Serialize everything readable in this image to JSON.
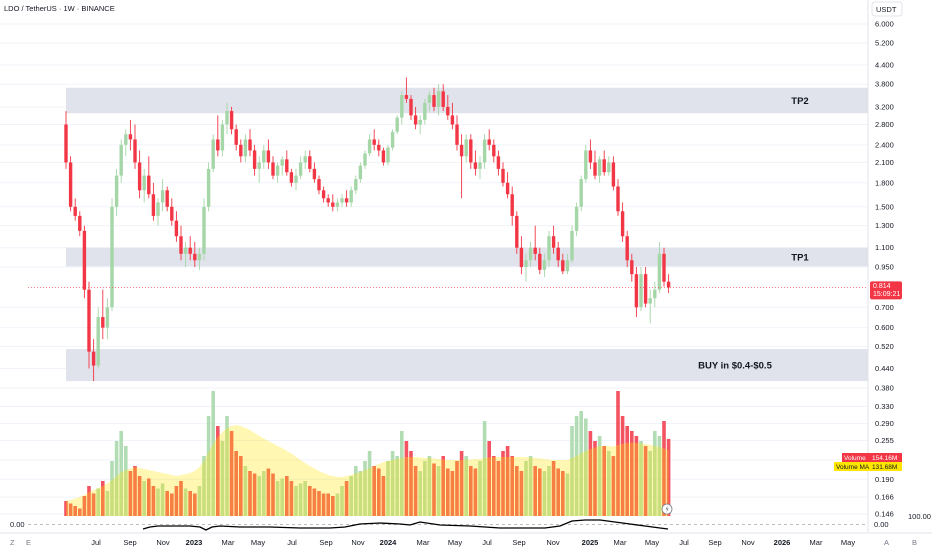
{
  "header": {
    "symbol_title": "LDO / TetherUS · 1W · BINANCE",
    "currency": "USDT"
  },
  "price_axis": {
    "labels": [
      "6.000",
      "5.200",
      "4.400",
      "3.800",
      "3.200",
      "2.800",
      "2.400",
      "2.100",
      "1.800",
      "1.500",
      "1.300",
      "1.100",
      "0.950",
      "0.814",
      "0.700",
      "0.600",
      "0.520",
      "0.440",
      "0.380",
      "0.330",
      "0.290",
      "0.255",
      "0.220",
      "0.190",
      "0.166",
      "0.146"
    ],
    "values": [
      6.0,
      5.2,
      4.4,
      3.8,
      3.2,
      2.8,
      2.4,
      2.1,
      1.8,
      1.5,
      1.3,
      1.1,
      0.95,
      0.814,
      0.7,
      0.6,
      0.52,
      0.44,
      0.38,
      0.33,
      0.29,
      0.255,
      0.22,
      0.19,
      0.166,
      0.146
    ]
  },
  "current_price": {
    "value": "0.814",
    "countdown": "15:09:21",
    "color": "#f23645"
  },
  "volume_tags": {
    "volume_label": "Volume",
    "volume_value": "154.16M",
    "ma_label": "Volume MA",
    "ma_value": "131.68M",
    "volume_color": "#f23645",
    "ma_color": "#ffe600"
  },
  "indicator": {
    "left_value": "0.00",
    "right_value": "0.00",
    "right_extra": "100.00"
  },
  "time_axis": {
    "labels": [
      "Jul",
      "Sep",
      "Nov",
      "2023",
      "Mar",
      "May",
      "Jul",
      "Sep",
      "Nov",
      "2024",
      "Mar",
      "May",
      "Jul",
      "Sep",
      "Nov",
      "2025",
      "Mar",
      "May",
      "Jul",
      "Sep",
      "Nov",
      "2026",
      "Mar",
      "May"
    ],
    "bold": [
      "2023",
      "2024",
      "2025",
      "2026"
    ]
  },
  "footer_icons": [
    "Z",
    "E",
    "A",
    "B"
  ],
  "zones": [
    {
      "label": "TP2",
      "top": 3.7,
      "bottom": 3.05
    },
    {
      "label": "TP1",
      "top": 1.1,
      "bottom": 0.955
    },
    {
      "label": "BUY in $0.4-$0.5",
      "top": 0.51,
      "bottom": 0.4
    }
  ],
  "colors": {
    "up": "#a5d6a7",
    "down": "#f23645",
    "zone": "#e0e3eb",
    "grid": "#f0f3fa",
    "volume_ma": "#ffe600"
  },
  "chart_data": {
    "type": "candlestick",
    "title": "LDO / TetherUS · 1W · BINANCE",
    "scale": "log",
    "ylim": [
      0.146,
      6.0
    ],
    "candles_ohlc": [
      [
        2.8,
        3.1,
        2.0,
        2.1
      ],
      [
        2.1,
        2.2,
        1.45,
        1.5
      ],
      [
        1.5,
        1.6,
        1.35,
        1.4
      ],
      [
        1.4,
        1.45,
        1.2,
        1.25
      ],
      [
        1.25,
        1.3,
        0.75,
        0.8
      ],
      [
        0.8,
        0.85,
        0.44,
        0.5
      ],
      [
        0.5,
        0.55,
        0.4,
        0.45
      ],
      [
        0.45,
        0.7,
        0.44,
        0.65
      ],
      [
        0.65,
        0.8,
        0.55,
        0.6
      ],
      [
        0.6,
        0.75,
        0.55,
        0.7
      ],
      [
        0.7,
        1.6,
        0.68,
        1.5
      ],
      [
        1.5,
        2.0,
        1.4,
        1.9
      ],
      [
        1.9,
        2.5,
        1.8,
        2.4
      ],
      [
        2.4,
        2.7,
        2.2,
        2.6
      ],
      [
        2.6,
        2.9,
        2.3,
        2.5
      ],
      [
        2.5,
        2.8,
        2.0,
        2.1
      ],
      [
        2.1,
        2.3,
        1.6,
        1.7
      ],
      [
        1.7,
        2.0,
        1.55,
        1.9
      ],
      [
        1.9,
        2.2,
        1.6,
        1.65
      ],
      [
        1.65,
        1.8,
        1.35,
        1.4
      ],
      [
        1.4,
        1.6,
        1.3,
        1.55
      ],
      [
        1.55,
        1.85,
        1.45,
        1.7
      ],
      [
        1.7,
        1.75,
        1.45,
        1.5
      ],
      [
        1.5,
        1.6,
        1.3,
        1.35
      ],
      [
        1.35,
        1.45,
        1.15,
        1.2
      ],
      [
        1.2,
        1.3,
        1.0,
        1.05
      ],
      [
        1.05,
        1.15,
        0.95,
        1.1
      ],
      [
        1.1,
        1.2,
        1.0,
        1.05
      ],
      [
        1.05,
        1.15,
        0.95,
        1.0
      ],
      [
        1.0,
        1.1,
        0.93,
        1.05
      ],
      [
        1.05,
        1.6,
        1.0,
        1.5
      ],
      [
        1.5,
        2.1,
        1.45,
        2.0
      ],
      [
        2.0,
        2.6,
        1.95,
        2.5
      ],
      [
        2.5,
        3.0,
        2.2,
        2.3
      ],
      [
        2.3,
        2.9,
        2.2,
        2.8
      ],
      [
        2.8,
        3.3,
        2.6,
        3.1
      ],
      [
        3.1,
        3.2,
        2.6,
        2.7
      ],
      [
        2.7,
        2.8,
        2.3,
        2.4
      ],
      [
        2.4,
        2.5,
        2.1,
        2.2
      ],
      [
        2.2,
        2.6,
        2.1,
        2.5
      ],
      [
        2.5,
        2.7,
        2.2,
        2.3
      ],
      [
        2.3,
        2.4,
        1.9,
        2.0
      ],
      [
        2.0,
        2.2,
        1.8,
        2.1
      ],
      [
        2.1,
        2.4,
        2.0,
        2.3
      ],
      [
        2.3,
        2.5,
        2.0,
        2.1
      ],
      [
        2.1,
        2.2,
        1.85,
        1.9
      ],
      [
        1.9,
        2.1,
        1.8,
        2.05
      ],
      [
        2.05,
        2.2,
        1.9,
        2.15
      ],
      [
        2.15,
        2.3,
        1.9,
        1.95
      ],
      [
        1.95,
        2.0,
        1.75,
        1.8
      ],
      [
        1.8,
        2.0,
        1.7,
        1.9
      ],
      [
        1.9,
        2.2,
        1.85,
        2.1
      ],
      [
        2.1,
        2.3,
        2.0,
        2.2
      ],
      [
        2.2,
        2.3,
        1.95,
        2.0
      ],
      [
        2.0,
        2.1,
        1.8,
        1.85
      ],
      [
        1.85,
        1.9,
        1.65,
        1.7
      ],
      [
        1.7,
        1.75,
        1.55,
        1.6
      ],
      [
        1.6,
        1.65,
        1.5,
        1.55
      ],
      [
        1.55,
        1.65,
        1.45,
        1.5
      ],
      [
        1.5,
        1.6,
        1.45,
        1.55
      ],
      [
        1.55,
        1.65,
        1.5,
        1.6
      ],
      [
        1.6,
        1.7,
        1.5,
        1.55
      ],
      [
        1.55,
        1.75,
        1.5,
        1.7
      ],
      [
        1.7,
        1.9,
        1.65,
        1.85
      ],
      [
        1.85,
        2.1,
        1.8,
        2.05
      ],
      [
        2.05,
        2.3,
        2.0,
        2.25
      ],
      [
        2.25,
        2.6,
        2.2,
        2.5
      ],
      [
        2.5,
        2.7,
        2.3,
        2.4
      ],
      [
        2.4,
        2.5,
        2.2,
        2.3
      ],
      [
        2.3,
        2.35,
        2.05,
        2.1
      ],
      [
        2.1,
        2.4,
        2.05,
        2.35
      ],
      [
        2.35,
        2.7,
        2.3,
        2.65
      ],
      [
        2.65,
        3.0,
        2.6,
        2.95
      ],
      [
        2.95,
        3.6,
        2.8,
        3.5
      ],
      [
        3.5,
        4.0,
        3.3,
        3.4
      ],
      [
        3.4,
        3.5,
        2.9,
        3.0
      ],
      [
        3.0,
        3.2,
        2.7,
        2.8
      ],
      [
        2.8,
        3.0,
        2.6,
        2.9
      ],
      [
        2.9,
        3.4,
        2.8,
        3.3
      ],
      [
        3.3,
        3.6,
        3.1,
        3.5
      ],
      [
        3.5,
        3.7,
        3.1,
        3.2
      ],
      [
        3.2,
        3.8,
        3.0,
        3.6
      ],
      [
        3.6,
        3.8,
        3.1,
        3.2
      ],
      [
        3.2,
        3.5,
        2.9,
        3.0
      ],
      [
        3.0,
        3.3,
        2.7,
        2.8
      ],
      [
        2.8,
        3.0,
        2.3,
        2.4
      ],
      [
        2.4,
        2.6,
        1.6,
        2.2
      ],
      [
        2.2,
        2.6,
        2.1,
        2.5
      ],
      [
        2.5,
        2.6,
        2.0,
        2.1
      ],
      [
        2.1,
        2.3,
        1.9,
        2.0
      ],
      [
        2.0,
        2.2,
        1.85,
        2.1
      ],
      [
        2.1,
        2.6,
        2.0,
        2.5
      ],
      [
        2.5,
        2.7,
        2.3,
        2.4
      ],
      [
        2.4,
        2.5,
        2.1,
        2.2
      ],
      [
        2.2,
        2.3,
        1.9,
        2.0
      ],
      [
        2.0,
        2.1,
        1.75,
        1.8
      ],
      [
        1.8,
        1.95,
        1.6,
        1.65
      ],
      [
        1.65,
        1.75,
        1.3,
        1.4
      ],
      [
        1.4,
        1.45,
        1.05,
        1.1
      ],
      [
        1.1,
        1.2,
        0.9,
        0.95
      ],
      [
        0.95,
        1.05,
        0.85,
        1.0
      ],
      [
        1.0,
        1.15,
        0.95,
        1.1
      ],
      [
        1.1,
        1.3,
        1.0,
        1.05
      ],
      [
        1.05,
        1.1,
        0.9,
        0.93
      ],
      [
        0.93,
        1.05,
        0.88,
        1.0
      ],
      [
        1.0,
        1.25,
        0.95,
        1.2
      ],
      [
        1.2,
        1.3,
        1.05,
        1.1
      ],
      [
        1.1,
        1.15,
        0.95,
        1.0
      ],
      [
        1.0,
        1.05,
        0.9,
        0.92
      ],
      [
        0.92,
        1.05,
        0.9,
        1.0
      ],
      [
        1.0,
        1.3,
        0.98,
        1.25
      ],
      [
        1.25,
        1.55,
        1.2,
        1.5
      ],
      [
        1.5,
        1.9,
        1.45,
        1.85
      ],
      [
        1.85,
        2.4,
        1.8,
        2.3
      ],
      [
        2.3,
        2.5,
        2.0,
        2.1
      ],
      [
        2.1,
        2.3,
        1.85,
        1.9
      ],
      [
        1.9,
        2.2,
        1.8,
        2.15
      ],
      [
        2.15,
        2.3,
        1.9,
        1.95
      ],
      [
        1.95,
        2.2,
        1.9,
        2.1
      ],
      [
        2.1,
        2.2,
        1.7,
        1.75
      ],
      [
        1.75,
        1.85,
        1.4,
        1.45
      ],
      [
        1.45,
        1.55,
        1.15,
        1.2
      ],
      [
        1.2,
        1.25,
        0.95,
        1.0
      ],
      [
        1.0,
        1.05,
        0.85,
        0.9
      ],
      [
        0.9,
        0.95,
        0.65,
        0.7
      ],
      [
        0.7,
        0.95,
        0.68,
        0.9
      ],
      [
        0.9,
        0.95,
        0.7,
        0.72
      ],
      [
        0.72,
        0.8,
        0.62,
        0.75
      ],
      [
        0.75,
        0.85,
        0.7,
        0.8
      ],
      [
        0.8,
        1.15,
        0.78,
        1.05
      ],
      [
        1.05,
        1.1,
        0.82,
        0.85
      ],
      [
        0.85,
        0.9,
        0.78,
        0.814
      ]
    ],
    "volume_millions": [
      30,
      25,
      20,
      15,
      40,
      60,
      45,
      55,
      70,
      50,
      110,
      150,
      170,
      140,
      90,
      100,
      80,
      70,
      75,
      60,
      55,
      65,
      50,
      45,
      60,
      70,
      55,
      50,
      45,
      60,
      120,
      200,
      250,
      180,
      150,
      200,
      170,
      130,
      120,
      100,
      90,
      85,
      80,
      90,
      95,
      85,
      70,
      75,
      80,
      70,
      60,
      65,
      70,
      60,
      55,
      50,
      45,
      45,
      40,
      45,
      60,
      70,
      80,
      100,
      90,
      110,
      130,
      100,
      95,
      80,
      110,
      130,
      120,
      170,
      150,
      130,
      100,
      90,
      110,
      120,
      105,
      100,
      120,
      95,
      90,
      110,
      130,
      120,
      100,
      95,
      110,
      190,
      150,
      120,
      110,
      130,
      140,
      120,
      100,
      90,
      110,
      120,
      100,
      95,
      90,
      100,
      110,
      95,
      90,
      85,
      180,
      200,
      210,
      195,
      170,
      150,
      160,
      140,
      130,
      120,
      250,
      200,
      180,
      170,
      160,
      150,
      140,
      130,
      170,
      160,
      190,
      154.16
    ],
    "volume_ma_millions": [
      30,
      32,
      35,
      38,
      42,
      48,
      52,
      56,
      60,
      65,
      72,
      80,
      88,
      92,
      95,
      98,
      96,
      94,
      92,
      90,
      88,
      86,
      84,
      82,
      80,
      82,
      84,
      86,
      90,
      98,
      110,
      128,
      145,
      158,
      168,
      176,
      180,
      182,
      180,
      176,
      172,
      166,
      160,
      155,
      150,
      145,
      140,
      136,
      130,
      125,
      118,
      112,
      106,
      100,
      95,
      90,
      86,
      82,
      80,
      78,
      78,
      80,
      82,
      85,
      88,
      92,
      96,
      100,
      104,
      108,
      110,
      112,
      114,
      116,
      118,
      118,
      118,
      117,
      116,
      116,
      115,
      114,
      113,
      112,
      112,
      112,
      112,
      113,
      113,
      114,
      114,
      116,
      117,
      118,
      118,
      118,
      118,
      118,
      118,
      118,
      118,
      117,
      116,
      115,
      114,
      113,
      112,
      112,
      112,
      112,
      116,
      120,
      125,
      130,
      134,
      137,
      140,
      140,
      140,
      139,
      142,
      144,
      146,
      147,
      146,
      145,
      144,
      142,
      140,
      138,
      135,
      131.68
    ],
    "volume_axis_max_millions": 260,
    "zones": [
      {
        "label": "TP2",
        "from": 3.05,
        "to": 3.7
      },
      {
        "label": "TP1",
        "from": 0.955,
        "to": 1.1
      },
      {
        "label": "BUY in $0.4-$0.5",
        "from": 0.4,
        "to": 0.51
      }
    ]
  }
}
